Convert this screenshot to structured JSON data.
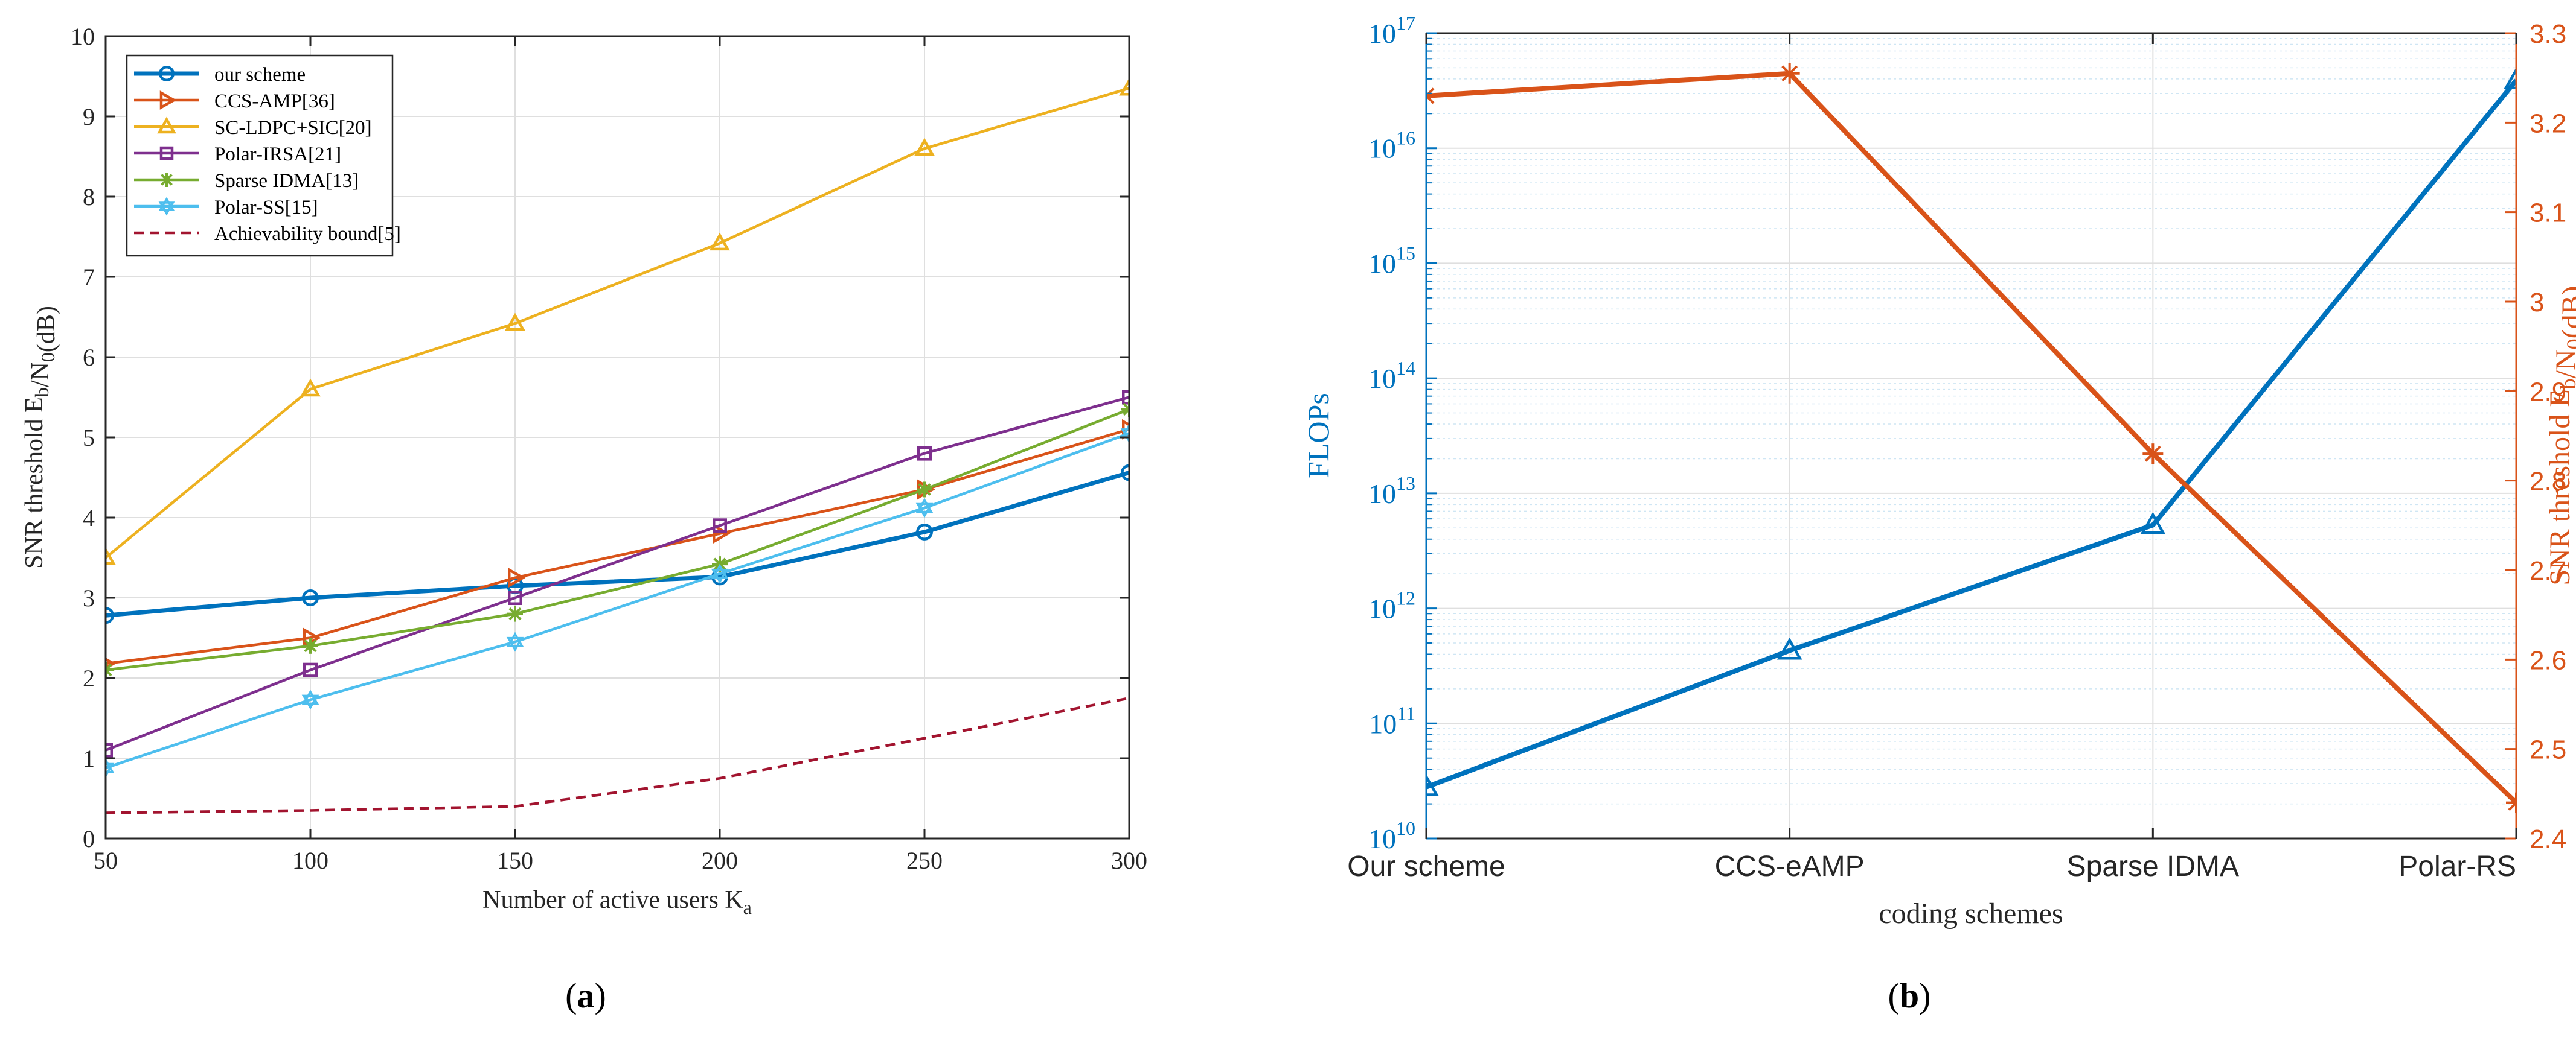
{
  "panel_labels": {
    "a": "a",
    "b": "b"
  },
  "colors": {
    "blue": "#0072BD",
    "orange": "#D95319",
    "yellow": "#EDB120",
    "purple": "#7E2F8E",
    "green": "#77AC30",
    "cyan": "#4DBEEE",
    "darkred": "#A2142F",
    "grid": "#DFDFDF",
    "axis": "#262626"
  },
  "chart_data": [
    {
      "type": "line",
      "xlabel": "Number of active users K_a",
      "ylabel": "SNR threshold E_b/N_0(dB)",
      "xlim": [
        50,
        300
      ],
      "ylim": [
        0,
        10
      ],
      "xticks": [
        50,
        100,
        150,
        200,
        250,
        300
      ],
      "yticks": [
        0,
        1,
        2,
        3,
        4,
        5,
        6,
        7,
        8,
        9,
        10
      ],
      "grid": true,
      "legend_position": "top-left",
      "x": [
        50,
        100,
        150,
        200,
        250,
        300
      ],
      "series": [
        {
          "name": "our scheme",
          "marker": "circle",
          "color": "#0072BD",
          "dash": false,
          "values": [
            2.78,
            3.0,
            3.15,
            3.26,
            3.82,
            4.56
          ]
        },
        {
          "name": "CCS-AMP[36]",
          "marker": "triangle-right",
          "color": "#D95319",
          "dash": false,
          "values": [
            2.18,
            2.5,
            3.25,
            3.8,
            4.35,
            5.1
          ]
        },
        {
          "name": "SC-LDPC+SIC[20]",
          "marker": "triangle-up",
          "color": "#EDB120",
          "dash": false,
          "values": [
            3.5,
            5.6,
            6.42,
            7.42,
            8.6,
            9.35
          ]
        },
        {
          "name": "Polar-IRSA[21]",
          "marker": "square",
          "color": "#7E2F8E",
          "dash": false,
          "values": [
            1.1,
            2.1,
            3.0,
            3.9,
            4.8,
            5.5
          ]
        },
        {
          "name": "Sparse IDMA[13]",
          "marker": "asterisk",
          "color": "#77AC30",
          "dash": false,
          "values": [
            2.1,
            2.4,
            2.8,
            3.42,
            4.35,
            5.35
          ]
        },
        {
          "name": "Polar-SS[15]",
          "marker": "hexagram",
          "color": "#4DBEEE",
          "dash": false,
          "values": [
            0.88,
            1.73,
            2.45,
            3.3,
            4.12,
            5.05
          ]
        },
        {
          "name": "Achievability bound[5]",
          "marker": "none",
          "color": "#A2142F",
          "dash": true,
          "values": [
            0.32,
            0.35,
            0.4,
            0.75,
            1.25,
            1.75
          ]
        }
      ]
    },
    {
      "type": "line",
      "categories": [
        "Our scheme",
        "CCS-eAMP",
        "Sparse IDMA",
        "Polar-RS"
      ],
      "xlabel": "coding schemes",
      "ylabel_left": "FLOPs",
      "ylabel_right": "SNR threshold E_b/N_0(dB)",
      "left_scale": "log",
      "left_ylim": [
        10000000000.0,
        1e+17
      ],
      "left_yticks": [
        "10^10",
        "10^11",
        "10^12",
        "10^13",
        "10^14",
        "10^15",
        "10^16",
        "10^17"
      ],
      "right_ylim": [
        2.4,
        3.3
      ],
      "right_yticks": [
        "2.4",
        "2.5",
        "2.6",
        "2.7",
        "2.8",
        "2.9",
        "3",
        "3.1",
        "3.2",
        "3.3"
      ],
      "grid": true,
      "series": [
        {
          "axis": "left",
          "marker": "triangle-up",
          "color": "#0072BD",
          "values": [
            28000000000.0,
            430000000000.0,
            5300000000000.0,
            3.9e+16
          ]
        },
        {
          "axis": "right",
          "marker": "asterisk",
          "color": "#D95319",
          "values": [
            3.23,
            3.255,
            2.83,
            2.44
          ]
        }
      ]
    }
  ]
}
